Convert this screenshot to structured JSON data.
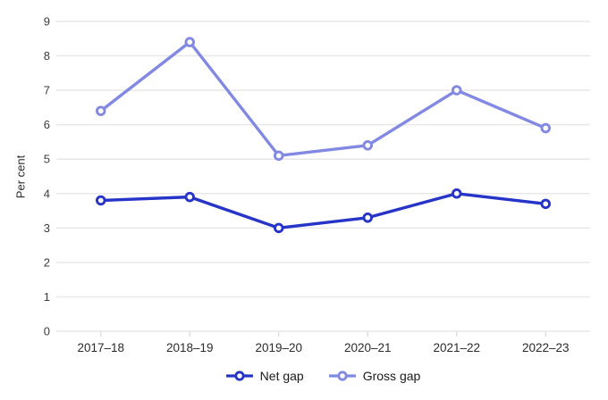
{
  "chart_data": {
    "type": "line",
    "title": "",
    "xlabel": "",
    "ylabel": "Per cent",
    "categories": [
      "2017–18",
      "2018–19",
      "2019–20",
      "2020–21",
      "2021–22",
      "2022–23"
    ],
    "series": [
      {
        "name": "Net gap",
        "color": "#2634C8",
        "values": [
          3.8,
          3.9,
          3.0,
          3.3,
          4.0,
          3.7
        ]
      },
      {
        "name": "Gross gap",
        "color": "#8289E2",
        "values": [
          6.4,
          8.4,
          5.1,
          5.4,
          7.0,
          5.9
        ]
      }
    ],
    "ylim": [
      0,
      9
    ],
    "ytick_step": 1,
    "grid": true,
    "legend_position": "bottom",
    "marker": "open-circle"
  },
  "palette": {
    "grid_line": "#E8E8E8",
    "axis_tick": "#E0E0E0",
    "marker_fill": "#FFFFFF",
    "background": "#FFFFFF"
  }
}
